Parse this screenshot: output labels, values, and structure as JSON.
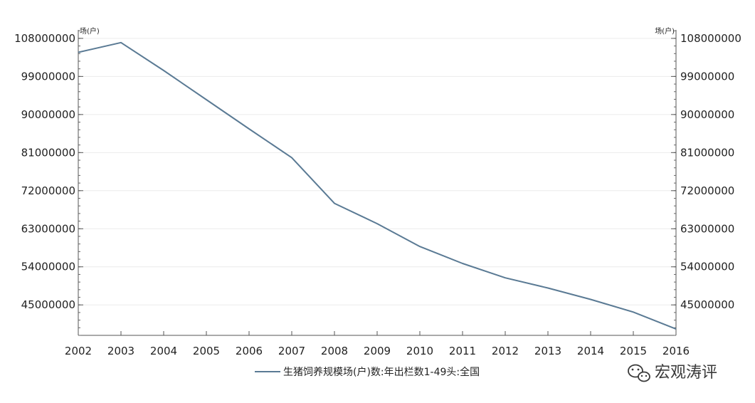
{
  "chart_data": {
    "type": "line",
    "title": "",
    "xlabel": "",
    "ylabel": "",
    "y_unit_left": "场(户)",
    "y_unit_right": "场(户)",
    "x": [
      "2002",
      "2003",
      "2004",
      "2005",
      "2006",
      "2007",
      "2008",
      "2009",
      "2010",
      "2011",
      "2012",
      "2013",
      "2014",
      "2015",
      "2016"
    ],
    "y_ticks": [
      45000000,
      54000000,
      63000000,
      72000000,
      81000000,
      90000000,
      99000000,
      108000000
    ],
    "y_tick_labels": [
      "45000000",
      "54000000",
      "63000000",
      "72000000",
      "81000000",
      "90000000",
      "99000000",
      "108000000"
    ],
    "ylim": [
      37800000,
      110000000
    ],
    "grid": true,
    "legend_position": "bottom",
    "series": [
      {
        "name": "生猪饲养规模场(户)数:年出栏数1-49头:全国",
        "color": "#5a7a94",
        "values": [
          104700000,
          107000000,
          100400000,
          93500000,
          86600000,
          79800000,
          69000000,
          64200000,
          58800000,
          54800000,
          51400000,
          49000000,
          46300000,
          43300000,
          39300000
        ]
      }
    ]
  },
  "watermark": {
    "text": "宏观涛评",
    "icon": "wechat-icon"
  }
}
